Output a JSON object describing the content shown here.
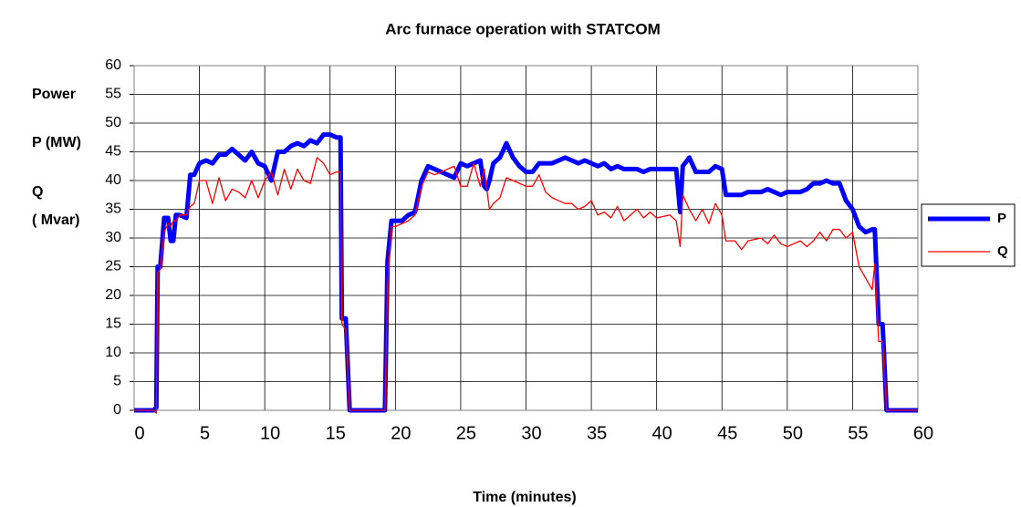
{
  "chart_data": {
    "type": "line",
    "title": "Arc furnace operation with STATCOM",
    "xlabel": "Time (minutes)",
    "ylabel_lines": [
      "Power",
      "P (MW)",
      "Q",
      "( Mvar)"
    ],
    "xlim": [
      0,
      60
    ],
    "xticks": [
      0,
      5,
      10,
      15,
      20,
      25,
      30,
      35,
      40,
      45,
      50,
      55,
      60
    ],
    "ylim": [
      0,
      60
    ],
    "yticks": [
      0,
      5,
      10,
      15,
      20,
      25,
      30,
      35,
      40,
      45,
      50,
      55,
      60
    ],
    "grid": true,
    "legend": "right",
    "x": [
      0,
      1.5,
      1.7,
      1.8,
      2.0,
      2.3,
      2.6,
      2.8,
      3.0,
      3.2,
      3.5,
      4.0,
      4.3,
      4.6,
      5.0,
      5.5,
      6.0,
      6.5,
      7.0,
      7.5,
      8.0,
      8.5,
      9.0,
      9.5,
      10,
      10.5,
      11,
      11.5,
      12,
      12.5,
      13,
      13.5,
      14,
      14.5,
      15,
      15.5,
      15.8,
      15.9,
      16.2,
      16.5,
      19,
      19.2,
      19.4,
      19.7,
      20,
      20.5,
      21,
      21.5,
      22,
      22.5,
      23,
      23.5,
      24,
      24.5,
      25,
      25.5,
      26,
      26.5,
      26.8,
      27,
      27.2,
      27.5,
      28,
      28.5,
      29,
      29.5,
      30,
      30.5,
      31,
      31.5,
      32,
      32.5,
      33,
      33.5,
      34,
      34.5,
      35,
      35.5,
      36,
      36.5,
      37,
      37.5,
      38,
      38.5,
      39,
      39.5,
      40,
      41,
      41.5,
      41.8,
      42,
      42.5,
      43,
      43.5,
      44,
      44.5,
      45,
      45.3,
      46,
      46.5,
      47,
      48,
      48.5,
      49,
      49.5,
      50,
      51,
      51.5,
      52,
      52.5,
      53,
      53.5,
      54,
      54.5,
      55,
      55.5,
      56,
      56.5,
      56.7,
      57,
      57.3,
      57.6,
      60
    ],
    "series": [
      {
        "name": "P",
        "color": "#0000ff",
        "width": 5,
        "values": [
          0,
          0,
          0.5,
          25,
          25,
          33.5,
          33.5,
          29.5,
          29.5,
          34,
          34,
          33.5,
          41,
          41,
          43,
          43.5,
          43,
          44.5,
          44.5,
          45.5,
          44.5,
          43.5,
          45,
          43,
          42.5,
          40,
          45,
          45,
          46,
          46.5,
          46,
          47,
          46.5,
          48,
          48,
          47.5,
          47.5,
          16,
          16,
          0,
          0,
          0,
          26,
          33,
          33,
          33,
          34,
          34.5,
          40,
          42.5,
          42,
          41.5,
          41,
          40.5,
          43,
          42.5,
          43,
          43.5,
          39,
          38.5,
          40,
          43,
          44,
          46.5,
          44,
          42.5,
          41.5,
          41.5,
          43,
          43,
          43,
          43.5,
          44,
          43.5,
          43,
          43.5,
          43,
          42.5,
          43,
          42,
          42.5,
          42,
          42,
          42,
          41.5,
          42,
          42,
          42,
          42,
          34.5,
          42.5,
          44,
          41.5,
          41.5,
          41.5,
          42.5,
          42,
          37.5,
          37.5,
          37.5,
          38,
          38,
          38.5,
          38,
          37.5,
          38,
          38,
          38.5,
          39.5,
          39.5,
          40,
          39.5,
          39.5,
          36.5,
          35,
          32,
          31,
          31.5,
          31.5,
          15,
          15,
          0,
          0
        ]
      },
      {
        "name": "Q",
        "color": "#ff0000",
        "width": 1.3,
        "values": [
          0,
          0,
          -0.5,
          24,
          24.5,
          31,
          32.5,
          32,
          33,
          33,
          34,
          34,
          35.5,
          36,
          40,
          40,
          36,
          40.5,
          36.5,
          38.5,
          38,
          37,
          40,
          37,
          40,
          41.5,
          37.5,
          42,
          38.5,
          42,
          40,
          39.5,
          44,
          43,
          41,
          41.5,
          41.5,
          15,
          14,
          0,
          0,
          0,
          22,
          32,
          32,
          32.5,
          33,
          34,
          39,
          41.5,
          41,
          41.5,
          42,
          42.5,
          39,
          39,
          43,
          39,
          42,
          38.5,
          35,
          36,
          37,
          40.5,
          40,
          39.5,
          39,
          39,
          41,
          38,
          37,
          36.5,
          36,
          36,
          35,
          35.5,
          36.5,
          34,
          34.5,
          33.5,
          35.5,
          33,
          34,
          35,
          33.5,
          34.5,
          33.5,
          34,
          33,
          28.5,
          37.5,
          35,
          33,
          35,
          32.5,
          36,
          34,
          29.5,
          29.5,
          28,
          29.5,
          30,
          29,
          30.5,
          29,
          28.5,
          29.5,
          28.5,
          29.5,
          31,
          29.5,
          31.5,
          31.5,
          30,
          31,
          25,
          23,
          21,
          25.5,
          12,
          12,
          0,
          0
        ]
      }
    ]
  }
}
